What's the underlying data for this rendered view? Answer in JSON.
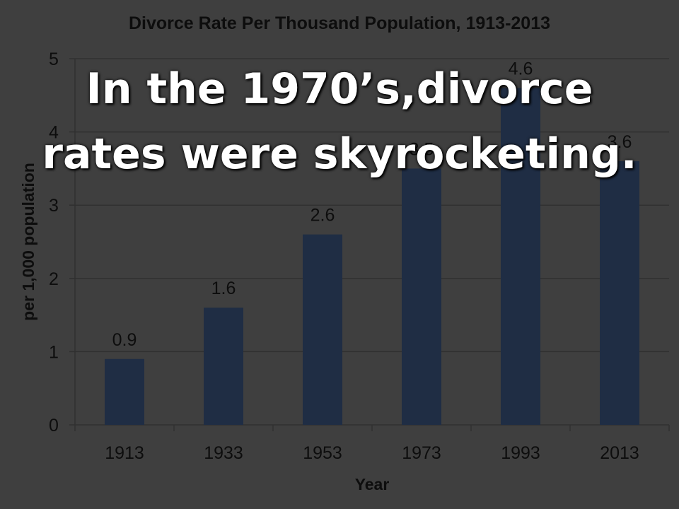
{
  "chart_data": {
    "type": "bar",
    "title": "Divorce Rate Per Thousand Population, 1913-2013",
    "xlabel": "Year",
    "ylabel": "per 1,000 population",
    "categories": [
      "1913",
      "1933",
      "1953",
      "1973",
      "1993",
      "2013"
    ],
    "values": [
      0.9,
      1.6,
      2.6,
      3.5,
      4.6,
      3.6
    ],
    "ylim": [
      0,
      5
    ],
    "yticks": [
      0,
      1,
      2,
      3,
      4,
      5
    ],
    "grid": true,
    "legend": "none",
    "bar_color": "#1f2d44",
    "grid_color": "#303030"
  },
  "overlay": {
    "line1": "In the 1970’s,divorce",
    "line2": "rates were skyrocketing."
  }
}
